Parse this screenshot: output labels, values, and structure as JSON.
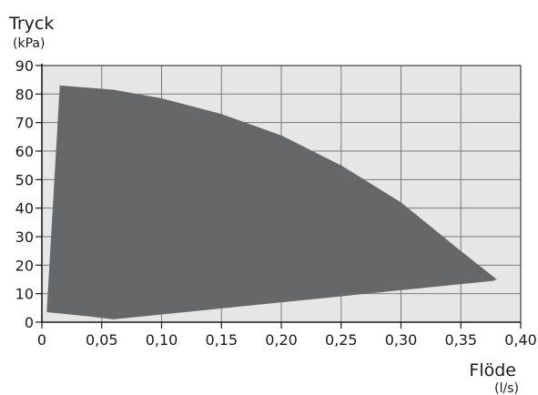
{
  "chart_data": {
    "type": "area",
    "ylabel": "Tryck",
    "yunit": "(kPa)",
    "xlabel": "Flöde",
    "xunit": "(l/s)",
    "xlim": [
      0,
      0.4
    ],
    "ylim": [
      0,
      90
    ],
    "xticks": [
      "0",
      "0,05",
      "0,10",
      "0,15",
      "0,20",
      "0,25",
      "0,30",
      "0,35",
      "0,40"
    ],
    "yticks": [
      "0",
      "10",
      "20",
      "30",
      "40",
      "50",
      "60",
      "70",
      "80",
      "90"
    ],
    "grid": true,
    "plot_background": "#e6e6e6",
    "fill_color": "#666769",
    "region": [
      {
        "x": 0.004,
        "y": 3.5
      },
      {
        "x": 0.015,
        "y": 83.0
      },
      {
        "x": 0.06,
        "y": 81.5
      },
      {
        "x": 0.1,
        "y": 78.5
      },
      {
        "x": 0.15,
        "y": 73.0
      },
      {
        "x": 0.2,
        "y": 65.5
      },
      {
        "x": 0.25,
        "y": 55.0
      },
      {
        "x": 0.3,
        "y": 42.0
      },
      {
        "x": 0.35,
        "y": 25.0
      },
      {
        "x": 0.38,
        "y": 15.0
      },
      {
        "x": 0.377,
        "y": 14.5
      },
      {
        "x": 0.06,
        "y": 1.0
      },
      {
        "x": 0.04,
        "y": 2.0
      },
      {
        "x": 0.004,
        "y": 3.5
      }
    ]
  }
}
